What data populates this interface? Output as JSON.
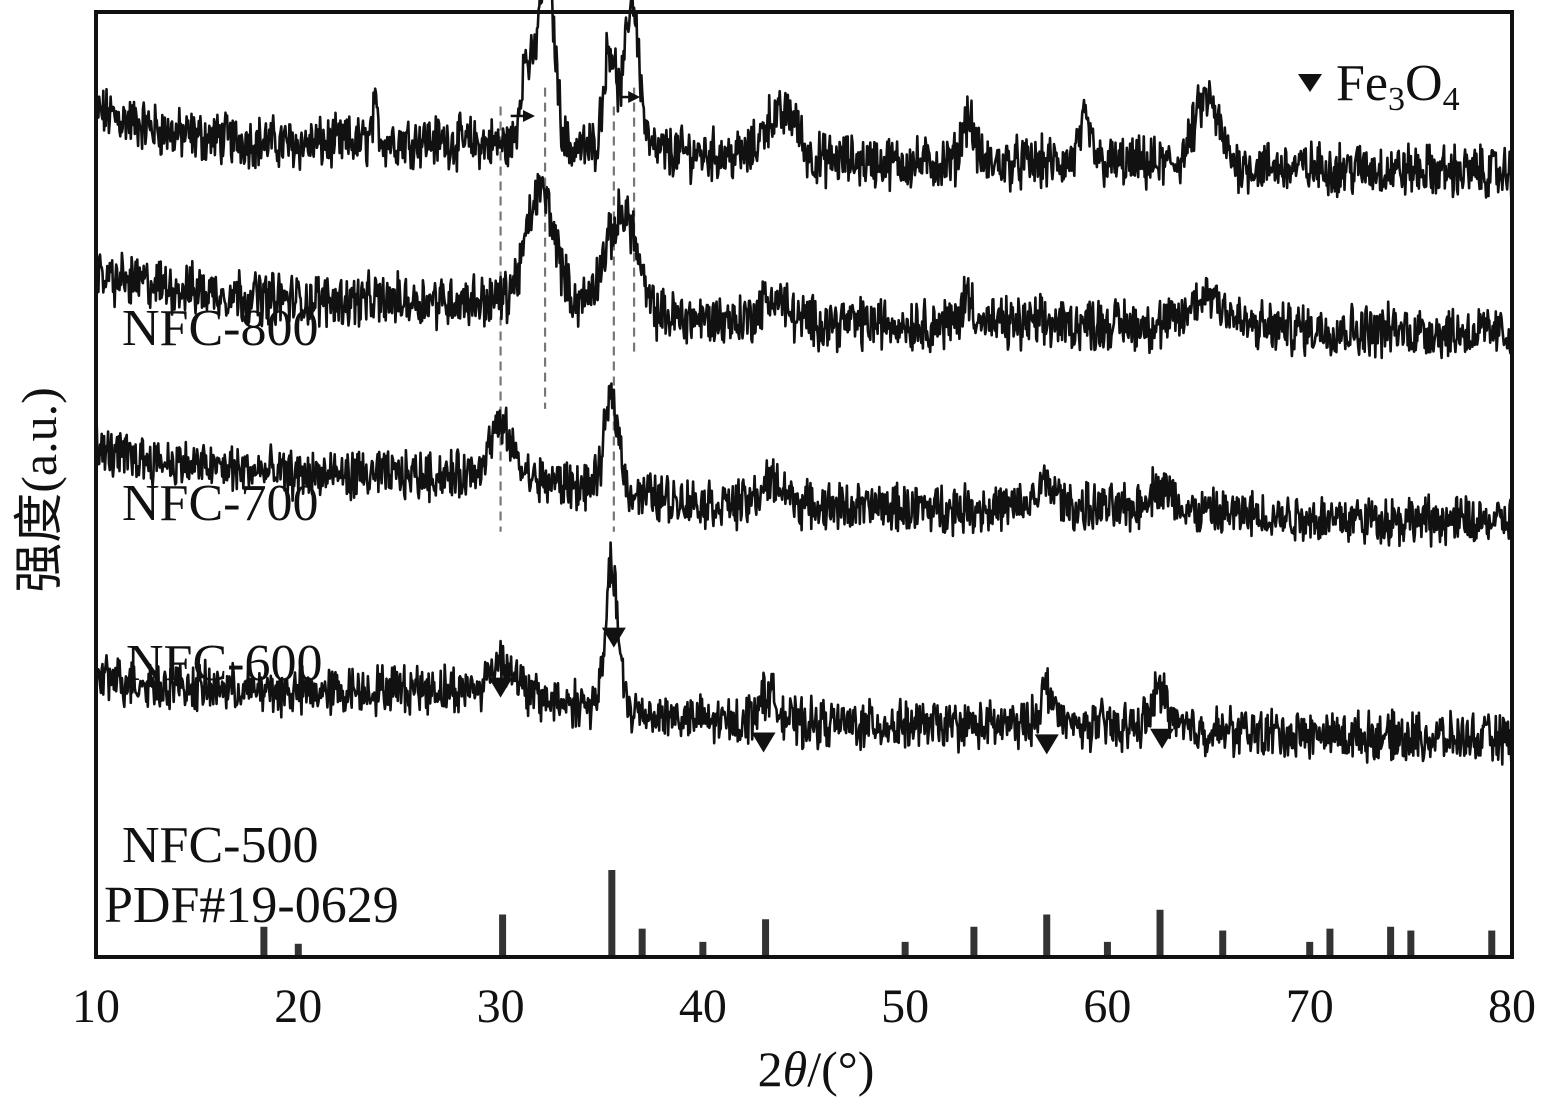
{
  "chart_data": {
    "type": "line",
    "title": "",
    "xlabel": "2θ/(°)",
    "xlabel_prefix": "2",
    "xlabel_theta": "θ",
    "xlabel_suffix": "/(°)",
    "ylabel": "强度(a.u.)",
    "xlim": [
      10,
      80
    ],
    "ylim": [
      0,
      100
    ],
    "grid": false,
    "x_ticks": [
      "10",
      "20",
      "30",
      "40",
      "50",
      "60",
      "70",
      "80"
    ],
    "legend": {
      "placement": "top-right",
      "marker": "▼",
      "label_main": "Fe",
      "label_sub1": "3",
      "label_mid": "O",
      "label_sub2": "4"
    },
    "series": [
      {
        "name": "NFC-800",
        "color": "#111111",
        "baseline": 86,
        "noise": 2.2,
        "profile": [
          [
            10,
            3.5
          ],
          [
            14,
            1.0
          ],
          [
            20,
            0.0
          ],
          [
            26,
            0.5
          ],
          [
            30,
            0.0
          ],
          [
            40,
            -1.0
          ],
          [
            50,
            -2.0
          ],
          [
            60,
            -2.0
          ],
          [
            70,
            -2.5
          ],
          [
            80,
            -3.0
          ]
        ],
        "peaks": [
          {
            "x": 31.2,
            "h": 8,
            "w": 0.25
          },
          {
            "x": 32.0,
            "h": 13,
            "w": 0.35
          },
          {
            "x": 32.5,
            "h": 11,
            "w": 0.3
          },
          {
            "x": 35.4,
            "h": 11,
            "w": 0.3
          },
          {
            "x": 36.5,
            "h": 16,
            "w": 0.35
          },
          {
            "x": 23.8,
            "h": 3,
            "w": 0.15
          },
          {
            "x": 43.4,
            "h": 4,
            "w": 0.5
          },
          {
            "x": 44.4,
            "h": 4,
            "w": 0.4
          },
          {
            "x": 53.1,
            "h": 5,
            "w": 0.3
          },
          {
            "x": 58.9,
            "h": 4,
            "w": 0.3
          },
          {
            "x": 64.9,
            "h": 7,
            "w": 0.6
          }
        ]
      },
      {
        "name": "NFC-700",
        "color": "#111111",
        "baseline": 69,
        "noise": 2.2,
        "profile": [
          [
            10,
            3.0
          ],
          [
            15,
            1.5
          ],
          [
            20,
            0.5
          ],
          [
            25,
            0.5
          ],
          [
            30,
            0.5
          ],
          [
            40,
            -1.5
          ],
          [
            50,
            -2.0
          ],
          [
            60,
            -2.0
          ],
          [
            70,
            -2.5
          ],
          [
            80,
            -3.0
          ]
        ],
        "peaks": [
          {
            "x": 32.0,
            "h": 12,
            "w": 0.7
          },
          {
            "x": 35.6,
            "h": 7,
            "w": 0.7
          },
          {
            "x": 36.4,
            "h": 6,
            "w": 0.5
          },
          {
            "x": 43.5,
            "h": 2.5,
            "w": 0.6
          },
          {
            "x": 53.1,
            "h": 3,
            "w": 0.3
          },
          {
            "x": 65.0,
            "h": 3.5,
            "w": 0.8
          }
        ]
      },
      {
        "name": "NFC-600",
        "color": "#111111",
        "baseline": 50,
        "noise": 2.0,
        "profile": [
          [
            10,
            3.5
          ],
          [
            15,
            2.0
          ],
          [
            20,
            1.0
          ],
          [
            25,
            1.0
          ],
          [
            30,
            1.0
          ],
          [
            40,
            -2.0
          ],
          [
            50,
            -2.5
          ],
          [
            60,
            -2.5
          ],
          [
            70,
            -3.5
          ],
          [
            80,
            -4.0
          ]
        ],
        "peaks": [
          {
            "x": 30.0,
            "h": 5,
            "w": 0.6
          },
          {
            "x": 35.5,
            "h": 10,
            "w": 0.35
          },
          {
            "x": 43.5,
            "h": 2.5,
            "w": 0.6
          },
          {
            "x": 57.0,
            "h": 2.5,
            "w": 0.5
          },
          {
            "x": 62.6,
            "h": 2.5,
            "w": 0.6
          }
        ]
      },
      {
        "name": "NFC-500",
        "color": "#111111",
        "baseline": 27,
        "noise": 2.0,
        "profile": [
          [
            10,
            2.5
          ],
          [
            15,
            1.5
          ],
          [
            20,
            1.0
          ],
          [
            26,
            1.5
          ],
          [
            30,
            1.0
          ],
          [
            40,
            -2.0
          ],
          [
            50,
            -2.5
          ],
          [
            60,
            -2.5
          ],
          [
            70,
            -3.5
          ],
          [
            80,
            -4.0
          ]
        ],
        "peaks": [
          {
            "x": 30.1,
            "h": 3.5,
            "w": 0.6
          },
          {
            "x": 35.5,
            "h": 15,
            "w": 0.3
          },
          {
            "x": 43.2,
            "h": 3,
            "w": 0.5
          },
          {
            "x": 57.0,
            "h": 4,
            "w": 0.35
          },
          {
            "x": 62.6,
            "h": 4,
            "w": 0.4
          }
        ]
      }
    ],
    "reference": {
      "name": "PDF#19-0629",
      "sticks": [
        {
          "x": 18.3,
          "h": 3.2
        },
        {
          "x": 20.0,
          "h": 1.4
        },
        {
          "x": 30.1,
          "h": 4.5
        },
        {
          "x": 35.5,
          "h": 9.2
        },
        {
          "x": 37.0,
          "h": 3.0
        },
        {
          "x": 40.0,
          "h": 1.6
        },
        {
          "x": 43.1,
          "h": 4.0
        },
        {
          "x": 50.0,
          "h": 1.6
        },
        {
          "x": 53.4,
          "h": 3.2
        },
        {
          "x": 57.0,
          "h": 4.5
        },
        {
          "x": 60.0,
          "h": 1.6
        },
        {
          "x": 62.6,
          "h": 5.0
        },
        {
          "x": 65.7,
          "h": 2.8
        },
        {
          "x": 70.0,
          "h": 1.6
        },
        {
          "x": 71.0,
          "h": 3.0
        },
        {
          "x": 74.0,
          "h": 3.2
        },
        {
          "x": 75.0,
          "h": 2.8
        },
        {
          "x": 79.0,
          "h": 2.8
        }
      ]
    },
    "markers": [
      {
        "x": 30.0,
        "y": 28.5
      },
      {
        "x": 35.6,
        "y": 33.8
      },
      {
        "x": 43.0,
        "y": 22.7
      },
      {
        "x": 57.0,
        "y": 22.5
      },
      {
        "x": 62.7,
        "y": 23.1
      }
    ],
    "guide_lines": [
      {
        "x": 30.0,
        "y_top": 90,
        "y_bottom": 45
      },
      {
        "x": 32.2,
        "y_top": 92,
        "y_bottom": 58
      },
      {
        "x": 35.6,
        "y_top": 90,
        "y_bottom": 45
      },
      {
        "x": 36.6,
        "y_top": 92,
        "y_bottom": 64
      }
    ],
    "shift_arrows": [
      {
        "x_from": 30.5,
        "x_to": 31.7,
        "y": 89
      },
      {
        "x_from": 36.0,
        "x_to": 36.9,
        "y": 91
      }
    ]
  }
}
